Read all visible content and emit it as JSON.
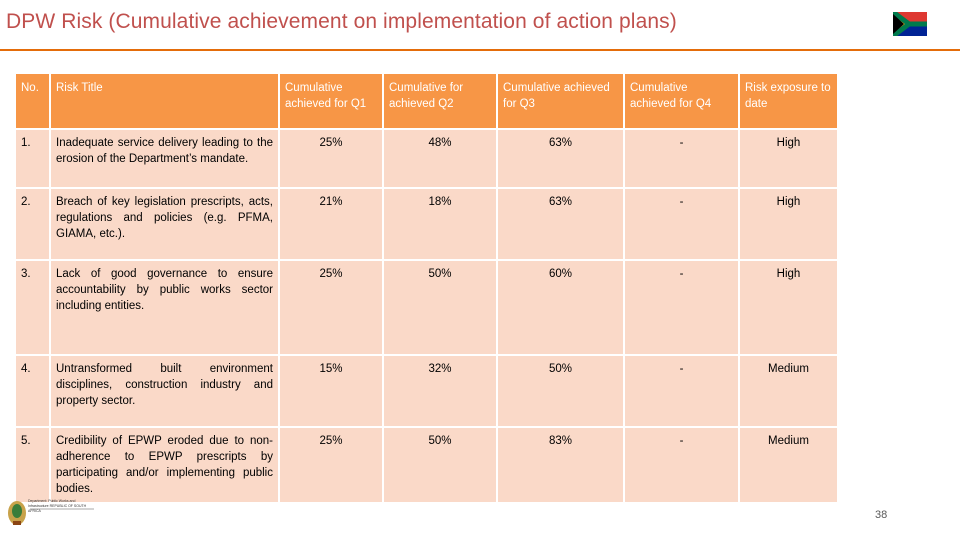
{
  "header": {
    "title": "DPW Risk (Cumulative achievement on implementation of action plans)",
    "flag_icon": "south-africa-flag-icon"
  },
  "colors": {
    "title": "#c0504d",
    "header_bg": "#f79646",
    "row_bg": "#fad9c8",
    "high": "#ff0000",
    "medium": "#ffff00"
  },
  "table": {
    "columns": {
      "no": "No.",
      "risk_title": "Risk Title",
      "q1": "Cumulative achieved for Q1",
      "q2": "Cumulative for achieved Q2",
      "q3": "Cumulative achieved for Q3",
      "q4": "Cumulative achieved for Q4",
      "exposure": "Risk exposure to date"
    },
    "rows": [
      {
        "no": "1.",
        "title": "Inadequate service delivery leading to the erosion of the Department’s mandate.",
        "q1": "25%",
        "q2": "48%",
        "q3": "63%",
        "q4": "-",
        "exposure": "High"
      },
      {
        "no": "2.",
        "title": "Breach of key legislation prescripts, acts, regulations and policies (e.g. PFMA, GIAMA, etc.).",
        "q1": "21%",
        "q2": "18%",
        "q3": "63%",
        "q4": "-",
        "exposure": "High"
      },
      {
        "no": "3.",
        "title": "Lack of good governance to ensure accountability by public works sector including entities.",
        "q1": "25%",
        "q2": "50%",
        "q3": "60%",
        "q4": "-",
        "exposure": "High"
      },
      {
        "no": "4.",
        "title": "Untransformed built environment disciplines, construction industry and property sector.",
        "q1": "15%",
        "q2": "32%",
        "q3": "50%",
        "q4": "-",
        "exposure": "Medium"
      },
      {
        "no": "5.",
        "title": "Credibility of EPWP eroded due to non-adherence to EPWP prescripts by participating and/or implementing public bodies.",
        "q1": "25%",
        "q2": "50%",
        "q3": "83%",
        "q4": "-",
        "exposure": "Medium"
      }
    ]
  },
  "footer": {
    "page_number": "38",
    "logo_icon": "coat-of-arms-icon",
    "logo_text": "Department: Public Works and Infrastructure REPUBLIC OF SOUTH AFRICA"
  }
}
